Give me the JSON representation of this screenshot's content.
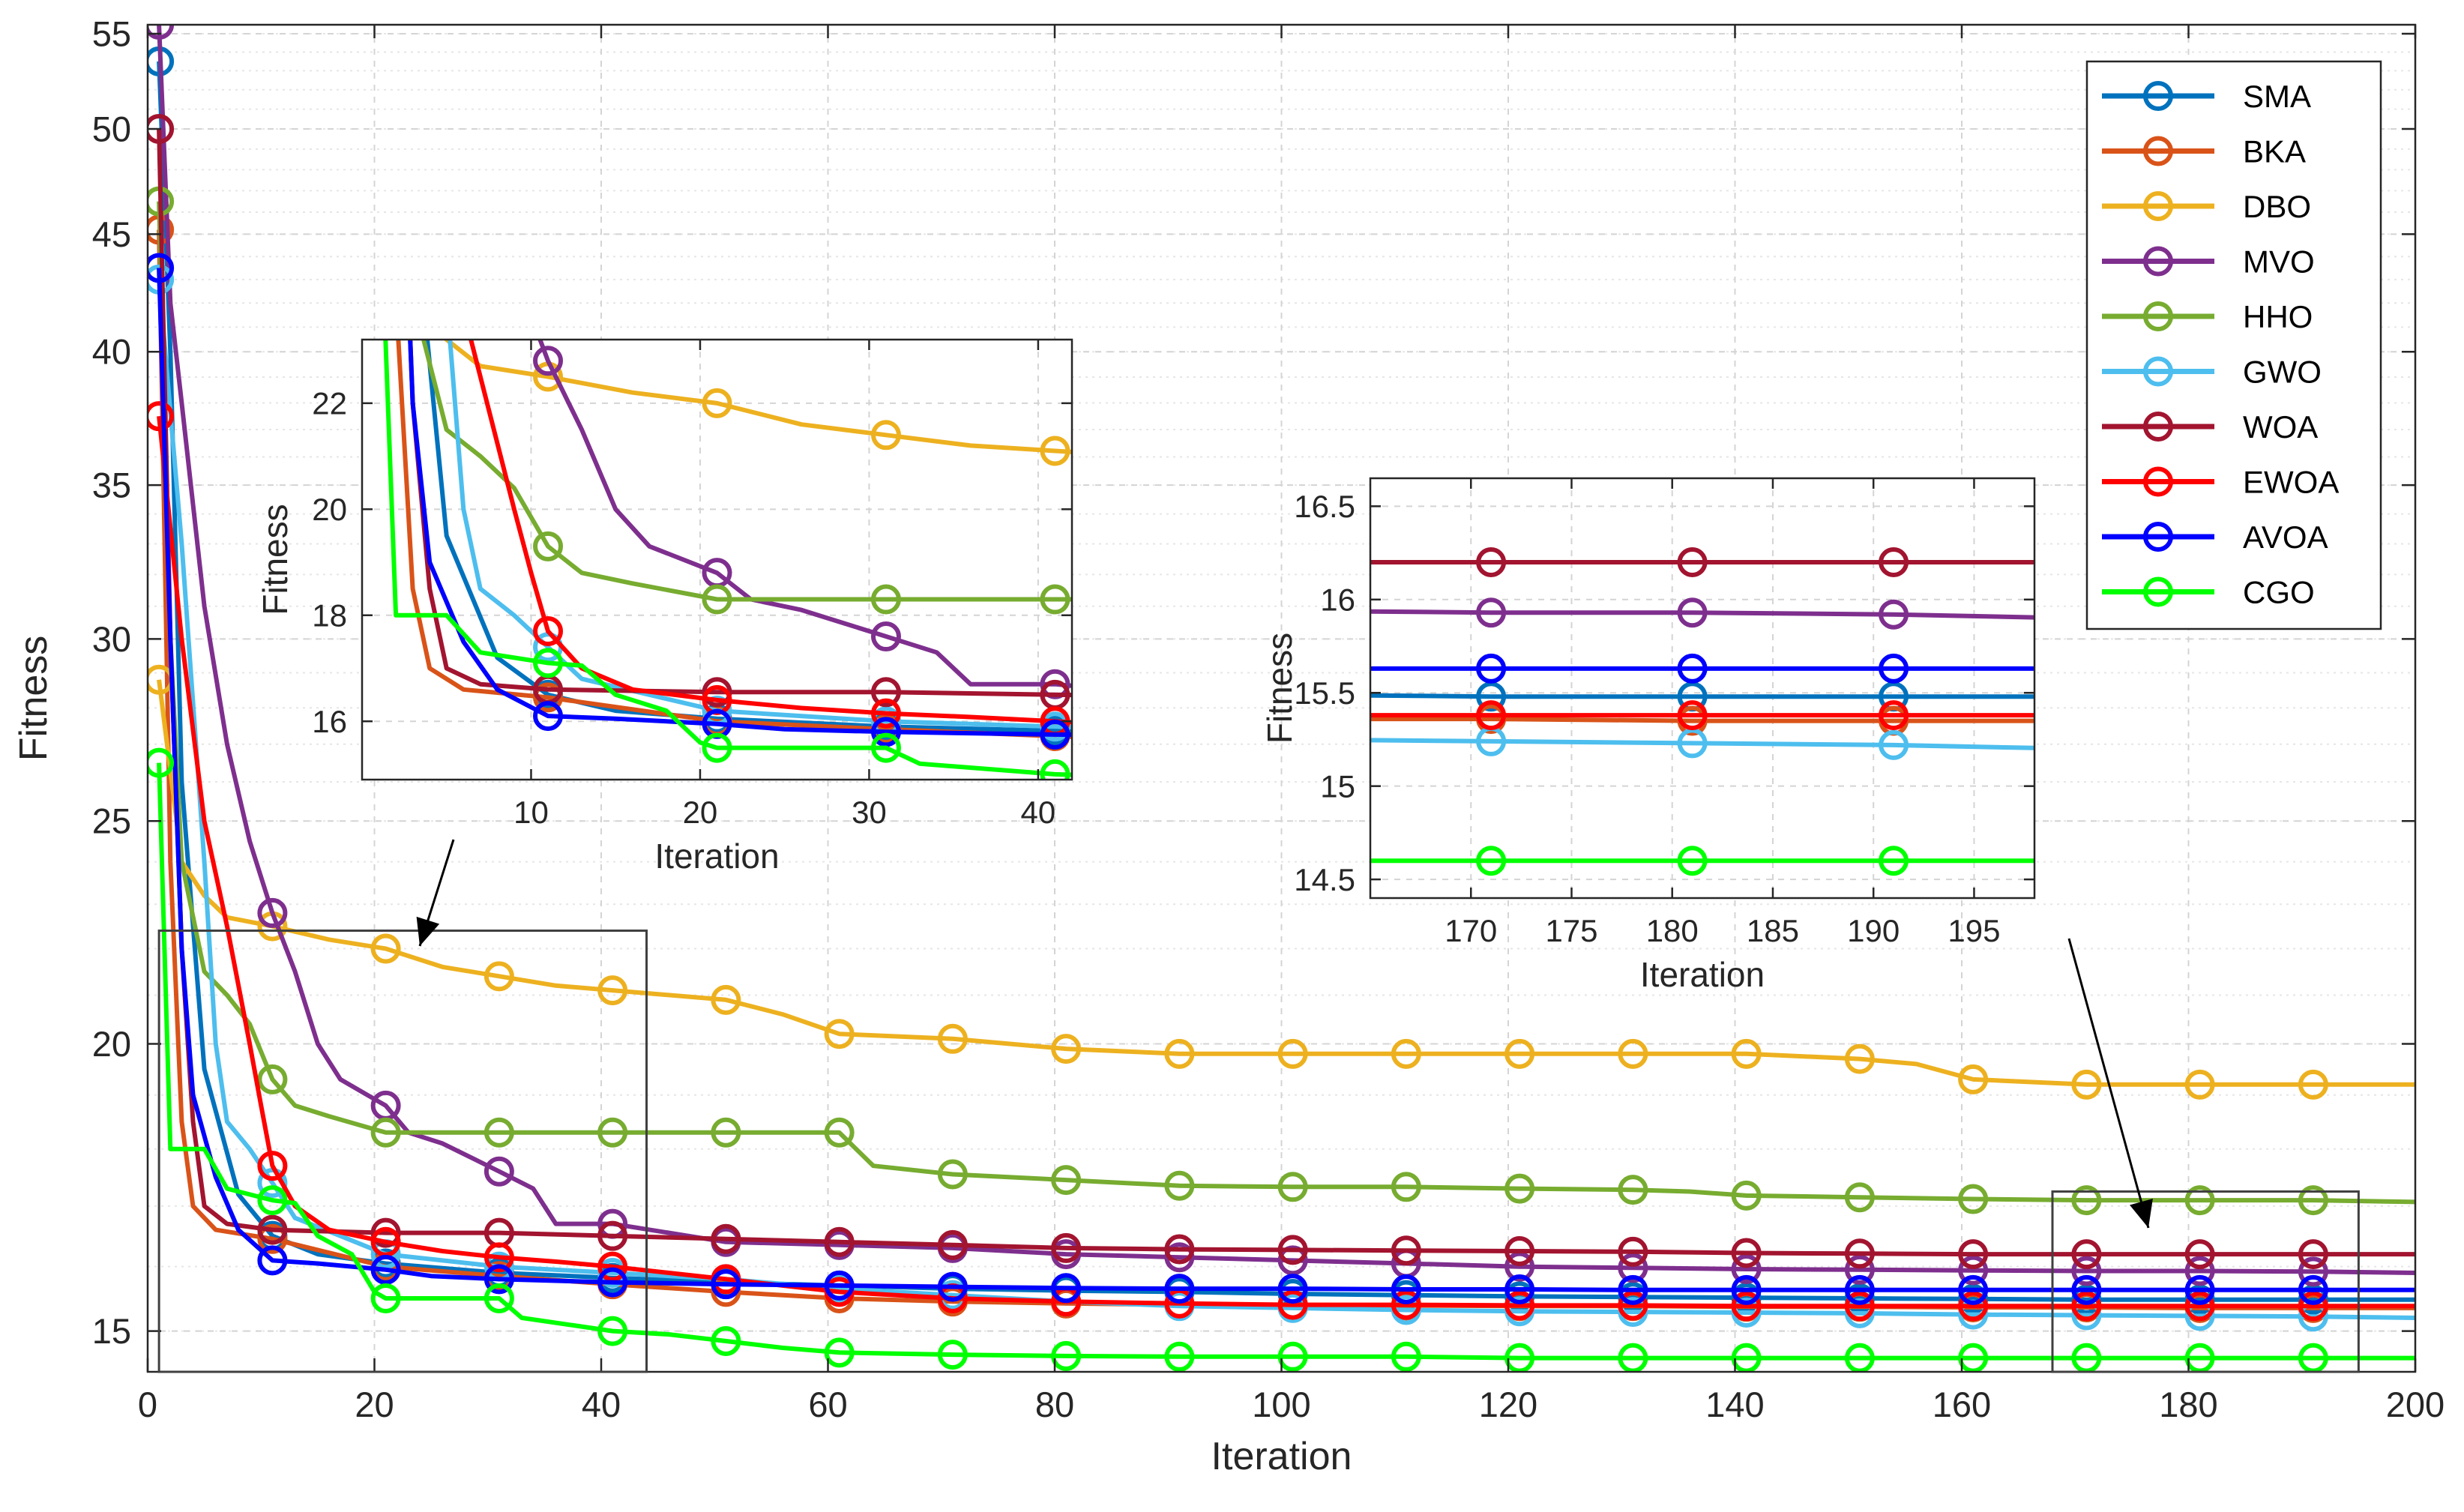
{
  "chart_data": {
    "type": "line",
    "xlabel": "Iteration",
    "ylabel": "Fitness",
    "xlim": [
      0,
      200
    ],
    "ylim": [
      14.4,
      55.5
    ],
    "yscale": "log",
    "xticks": [
      0,
      20,
      40,
      60,
      80,
      100,
      120,
      140,
      160,
      180,
      200
    ],
    "yticks": [
      15,
      20,
      25,
      30,
      35,
      40,
      45,
      50,
      55
    ],
    "grid": true,
    "legend_position": "top-right",
    "marker": "circle",
    "marker_every": 10,
    "series": [
      {
        "name": "SMA",
        "color": "#0072BD",
        "values": [
          [
            1,
            53.5
          ],
          [
            2,
            40
          ],
          [
            3,
            26
          ],
          [
            5,
            19.5
          ],
          [
            8,
            17.2
          ],
          [
            11,
            16.5
          ],
          [
            15,
            16.2
          ],
          [
            21,
            16.05
          ],
          [
            31,
            15.9
          ],
          [
            41,
            15.82
          ],
          [
            51,
            15.75
          ],
          [
            61,
            15.7
          ],
          [
            71,
            15.65
          ],
          [
            81,
            15.62
          ],
          [
            91,
            15.6
          ],
          [
            101,
            15.57
          ],
          [
            111,
            15.55
          ],
          [
            121,
            15.53
          ],
          [
            131,
            15.52
          ],
          [
            141,
            15.51
          ],
          [
            151,
            15.5
          ],
          [
            161,
            15.49
          ],
          [
            171,
            15.48
          ],
          [
            181,
            15.48
          ],
          [
            191,
            15.48
          ],
          [
            200,
            15.48
          ]
        ]
      },
      {
        "name": "BKA",
        "color": "#D95319",
        "values": [
          [
            1,
            45.2
          ],
          [
            2,
            24
          ],
          [
            3,
            18.5
          ],
          [
            4,
            17
          ],
          [
            6,
            16.6
          ],
          [
            11,
            16.45
          ],
          [
            21,
            16.0
          ],
          [
            31,
            15.85
          ],
          [
            41,
            15.72
          ],
          [
            51,
            15.6
          ],
          [
            61,
            15.5
          ],
          [
            71,
            15.45
          ],
          [
            81,
            15.42
          ],
          [
            91,
            15.4
          ],
          [
            101,
            15.4
          ],
          [
            111,
            15.39
          ],
          [
            121,
            15.38
          ],
          [
            131,
            15.38
          ],
          [
            141,
            15.37
          ],
          [
            151,
            15.37
          ],
          [
            161,
            15.36
          ],
          [
            171,
            15.36
          ],
          [
            181,
            15.35
          ],
          [
            191,
            15.35
          ],
          [
            200,
            15.35
          ]
        ]
      },
      {
        "name": "DBO",
        "color": "#EDB120",
        "values": [
          [
            1,
            28.8
          ],
          [
            3,
            24
          ],
          [
            5,
            23.2
          ],
          [
            7,
            22.7
          ],
          [
            11,
            22.5
          ],
          [
            16,
            22.2
          ],
          [
            21,
            22.0
          ],
          [
            26,
            21.6
          ],
          [
            31,
            21.4
          ],
          [
            36,
            21.2
          ],
          [
            41,
            21.1
          ],
          [
            51,
            20.9
          ],
          [
            56,
            20.6
          ],
          [
            61,
            20.2
          ],
          [
            71,
            20.1
          ],
          [
            81,
            19.9
          ],
          [
            91,
            19.8
          ],
          [
            101,
            19.8
          ],
          [
            111,
            19.8
          ],
          [
            121,
            19.8
          ],
          [
            131,
            19.8
          ],
          [
            141,
            19.8
          ],
          [
            151,
            19.7
          ],
          [
            156,
            19.6
          ],
          [
            161,
            19.3
          ],
          [
            171,
            19.2
          ],
          [
            181,
            19.2
          ],
          [
            191,
            19.2
          ],
          [
            200,
            19.2
          ]
        ]
      },
      {
        "name": "MVO",
        "color": "#7E2F8E",
        "values": [
          [
            1,
            55.5
          ],
          [
            2,
            42
          ],
          [
            3,
            38
          ],
          [
            5,
            31
          ],
          [
            7,
            27
          ],
          [
            9,
            24.5
          ],
          [
            11,
            22.8
          ],
          [
            13,
            21.5
          ],
          [
            15,
            20
          ],
          [
            17,
            19.3
          ],
          [
            21,
            18.8
          ],
          [
            23,
            18.3
          ],
          [
            26,
            18.1
          ],
          [
            29,
            17.8
          ],
          [
            31,
            17.6
          ],
          [
            34,
            17.3
          ],
          [
            36,
            16.7
          ],
          [
            41,
            16.7
          ],
          [
            51,
            16.4
          ],
          [
            61,
            16.35
          ],
          [
            71,
            16.3
          ],
          [
            81,
            16.2
          ],
          [
            91,
            16.15
          ],
          [
            101,
            16.1
          ],
          [
            111,
            16.05
          ],
          [
            121,
            16.0
          ],
          [
            131,
            15.98
          ],
          [
            141,
            15.96
          ],
          [
            151,
            15.95
          ],
          [
            161,
            15.94
          ],
          [
            171,
            15.93
          ],
          [
            181,
            15.93
          ],
          [
            191,
            15.92
          ],
          [
            200,
            15.9
          ]
        ]
      },
      {
        "name": "HHO",
        "color": "#77AC30",
        "values": [
          [
            1,
            46.5
          ],
          [
            2,
            30
          ],
          [
            3,
            24
          ],
          [
            5,
            21.5
          ],
          [
            7,
            21
          ],
          [
            9,
            20.4
          ],
          [
            11,
            19.3
          ],
          [
            13,
            18.8
          ],
          [
            16,
            18.6
          ],
          [
            21,
            18.3
          ],
          [
            31,
            18.3
          ],
          [
            41,
            18.3
          ],
          [
            51,
            18.3
          ],
          [
            61,
            18.3
          ],
          [
            64,
            17.7
          ],
          [
            71,
            17.55
          ],
          [
            81,
            17.45
          ],
          [
            91,
            17.35
          ],
          [
            101,
            17.33
          ],
          [
            111,
            17.33
          ],
          [
            121,
            17.3
          ],
          [
            131,
            17.28
          ],
          [
            136,
            17.25
          ],
          [
            141,
            17.18
          ],
          [
            151,
            17.15
          ],
          [
            161,
            17.12
          ],
          [
            171,
            17.1
          ],
          [
            181,
            17.1
          ],
          [
            191,
            17.1
          ],
          [
            200,
            17.07
          ]
        ]
      },
      {
        "name": "GWO",
        "color": "#4DBEEE",
        "values": [
          [
            1,
            43
          ],
          [
            3,
            33
          ],
          [
            5,
            24
          ],
          [
            6,
            20
          ],
          [
            7,
            18.5
          ],
          [
            9,
            18
          ],
          [
            11,
            17.4
          ],
          [
            13,
            16.8
          ],
          [
            17,
            16.5
          ],
          [
            21,
            16.2
          ],
          [
            31,
            16.0
          ],
          [
            41,
            15.9
          ],
          [
            51,
            15.8
          ],
          [
            61,
            15.65
          ],
          [
            71,
            15.55
          ],
          [
            81,
            15.45
          ],
          [
            91,
            15.38
          ],
          [
            101,
            15.35
          ],
          [
            111,
            15.32
          ],
          [
            121,
            15.3
          ],
          [
            131,
            15.29
          ],
          [
            141,
            15.28
          ],
          [
            151,
            15.27
          ],
          [
            161,
            15.25
          ],
          [
            171,
            15.24
          ],
          [
            181,
            15.23
          ],
          [
            191,
            15.22
          ],
          [
            200,
            15.2
          ]
        ]
      },
      {
        "name": "WOA",
        "color": "#A2142F",
        "values": [
          [
            1,
            50
          ],
          [
            2,
            30
          ],
          [
            3,
            22
          ],
          [
            4,
            18.5
          ],
          [
            5,
            17
          ],
          [
            7,
            16.7
          ],
          [
            11,
            16.6
          ],
          [
            21,
            16.55
          ],
          [
            31,
            16.55
          ],
          [
            41,
            16.5
          ],
          [
            51,
            16.45
          ],
          [
            61,
            16.4
          ],
          [
            71,
            16.35
          ],
          [
            81,
            16.3
          ],
          [
            91,
            16.28
          ],
          [
            101,
            16.27
          ],
          [
            111,
            16.26
          ],
          [
            121,
            16.25
          ],
          [
            131,
            16.24
          ],
          [
            141,
            16.22
          ],
          [
            151,
            16.21
          ],
          [
            161,
            16.2
          ],
          [
            171,
            16.2
          ],
          [
            181,
            16.2
          ],
          [
            191,
            16.2
          ],
          [
            200,
            16.2
          ]
        ]
      },
      {
        "name": "EWOA",
        "color": "#FF0000",
        "values": [
          [
            1,
            37.5
          ],
          [
            3,
            30
          ],
          [
            5,
            25
          ],
          [
            7,
            22.5
          ],
          [
            9,
            20
          ],
          [
            10,
            18.8
          ],
          [
            11,
            17.7
          ],
          [
            13,
            17
          ],
          [
            16,
            16.6
          ],
          [
            21,
            16.4
          ],
          [
            26,
            16.25
          ],
          [
            31,
            16.15
          ],
          [
            36,
            16.08
          ],
          [
            41,
            16.0
          ],
          [
            51,
            15.8
          ],
          [
            61,
            15.6
          ],
          [
            71,
            15.5
          ],
          [
            81,
            15.45
          ],
          [
            91,
            15.42
          ],
          [
            101,
            15.4
          ],
          [
            111,
            15.4
          ],
          [
            121,
            15.39
          ],
          [
            131,
            15.39
          ],
          [
            141,
            15.38
          ],
          [
            151,
            15.38
          ],
          [
            161,
            15.38
          ],
          [
            171,
            15.38
          ],
          [
            181,
            15.38
          ],
          [
            191,
            15.38
          ],
          [
            200,
            15.38
          ]
        ]
      },
      {
        "name": "AVOA",
        "color": "#0000FF",
        "values": [
          [
            1,
            43.5
          ],
          [
            2,
            30
          ],
          [
            3,
            22
          ],
          [
            4,
            19
          ],
          [
            6,
            17.5
          ],
          [
            8,
            16.6
          ],
          [
            11,
            16.1
          ],
          [
            15,
            16.05
          ],
          [
            21,
            15.95
          ],
          [
            25,
            15.85
          ],
          [
            31,
            15.8
          ],
          [
            41,
            15.75
          ],
          [
            51,
            15.72
          ],
          [
            61,
            15.7
          ],
          [
            71,
            15.68
          ],
          [
            81,
            15.66
          ],
          [
            91,
            15.65
          ],
          [
            101,
            15.65
          ],
          [
            111,
            15.64
          ],
          [
            121,
            15.64
          ],
          [
            131,
            15.63
          ],
          [
            141,
            15.63
          ],
          [
            151,
            15.63
          ],
          [
            161,
            15.63
          ],
          [
            171,
            15.63
          ],
          [
            181,
            15.63
          ],
          [
            191,
            15.63
          ],
          [
            200,
            15.63
          ]
        ]
      },
      {
        "name": "CGO",
        "color": "#00FF00",
        "values": [
          [
            1,
            26.5
          ],
          [
            2,
            18
          ],
          [
            5,
            18
          ],
          [
            7,
            17.3
          ],
          [
            11,
            17.1
          ],
          [
            13,
            17.05
          ],
          [
            15,
            16.5
          ],
          [
            18,
            16.2
          ],
          [
            20,
            15.6
          ],
          [
            21,
            15.5
          ],
          [
            31,
            15.5
          ],
          [
            33,
            15.2
          ],
          [
            41,
            15.0
          ],
          [
            46,
            14.95
          ],
          [
            51,
            14.85
          ],
          [
            56,
            14.75
          ],
          [
            61,
            14.68
          ],
          [
            71,
            14.65
          ],
          [
            81,
            14.63
          ],
          [
            91,
            14.62
          ],
          [
            101,
            14.62
          ],
          [
            111,
            14.62
          ],
          [
            121,
            14.6
          ],
          [
            131,
            14.6
          ],
          [
            141,
            14.6
          ],
          [
            151,
            14.6
          ],
          [
            161,
            14.6
          ],
          [
            171,
            14.6
          ],
          [
            181,
            14.6
          ],
          [
            191,
            14.6
          ],
          [
            200,
            14.6
          ]
        ]
      }
    ],
    "insets": [
      {
        "xlim": [
          0,
          42
        ],
        "ylim": [
          14.9,
          23.2
        ],
        "xticks": [
          10,
          20,
          30,
          40
        ],
        "yticks": [
          16,
          18,
          20,
          22
        ],
        "xlabel": "Iteration",
        "ylabel": "Fitness"
      },
      {
        "xlim": [
          165,
          198
        ],
        "ylim": [
          14.4,
          16.65
        ],
        "xticks": [
          170,
          175,
          180,
          185,
          190,
          195
        ],
        "yticks": [
          14.5,
          15,
          15.5,
          16,
          16.5
        ],
        "xlabel": "Iteration",
        "ylabel": "Fitness"
      }
    ],
    "zoom_boxes": [
      {
        "x_range": [
          1,
          44
        ],
        "y_range": [
          14.4,
          22.4
        ]
      },
      {
        "x_range": [
          168,
          195
        ],
        "y_range": [
          14.4,
          17.25
        ]
      }
    ]
  }
}
